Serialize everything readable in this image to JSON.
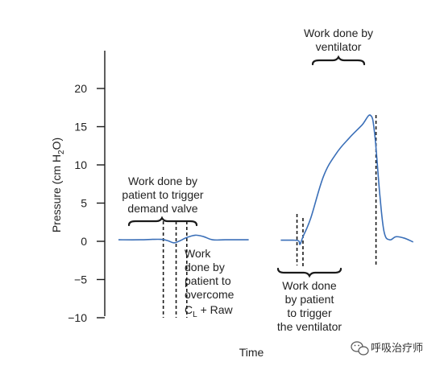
{
  "chart_data": {
    "type": "line",
    "title": "",
    "xlabel": "Time",
    "ylabel": {
      "main": "Pressure (cm H",
      "sub": "2",
      "tail": "O)"
    },
    "ylim": [
      -10,
      24
    ],
    "yticks": [
      -10,
      -5,
      0,
      5,
      10,
      15,
      20
    ],
    "ytick_labels": [
      "−10",
      "−5",
      "0",
      "5",
      "10",
      "15",
      "20"
    ],
    "grid": false,
    "legend": "none",
    "series": [
      {
        "color": "#3a6fb8",
        "points": [
          [
            0.0,
            0.2
          ],
          [
            0.5,
            0.2
          ],
          [
            0.8,
            0.25
          ],
          [
            1.0,
            0.25
          ],
          [
            1.15,
            0.1
          ],
          [
            1.3,
            -0.2
          ],
          [
            1.45,
            0.1
          ],
          [
            1.6,
            0.5
          ],
          [
            1.8,
            0.8
          ],
          [
            2.0,
            0.6
          ],
          [
            2.2,
            0.2
          ],
          [
            2.5,
            0.2
          ],
          [
            3.05,
            0.2
          ]
        ]
      },
      {
        "color": "#3a6fb8",
        "points": [
          [
            3.8,
            0.15
          ],
          [
            4.1,
            0.15
          ],
          [
            4.22,
            0.05
          ],
          [
            4.25,
            -0.4
          ],
          [
            4.32,
            0.6
          ],
          [
            4.5,
            3.0
          ],
          [
            4.8,
            8.5
          ],
          [
            5.1,
            11.5
          ],
          [
            5.4,
            13.5
          ],
          [
            5.7,
            15.2
          ],
          [
            5.9,
            16.5
          ],
          [
            6.0,
            14.0
          ],
          [
            6.12,
            6.0
          ],
          [
            6.22,
            1.2
          ],
          [
            6.35,
            0.2
          ],
          [
            6.5,
            0.6
          ],
          [
            6.7,
            0.4
          ],
          [
            6.9,
            -0.1
          ]
        ]
      }
    ],
    "x_guides": [
      1.05,
      1.35,
      1.6,
      4.18,
      4.32,
      6.03
    ]
  },
  "annotations": {
    "patient_demand_valve": [
      "Work done by",
      "patient to trigger",
      "demand valve"
    ],
    "patient_overcome": [
      "Work",
      "done by",
      "patient to",
      "overcome"
    ],
    "compliance_line": {
      "c": "C",
      "c_sub": "L",
      "rest": " + Raw"
    },
    "ventilator": [
      "Work done by",
      "ventilator"
    ],
    "patient_trigger_ventilator": [
      "Work done",
      "by patient",
      "to trigger",
      "the ventilator"
    ]
  },
  "watermark": {
    "text": "呼吸治疗师",
    "icon": "wechat-icon"
  }
}
